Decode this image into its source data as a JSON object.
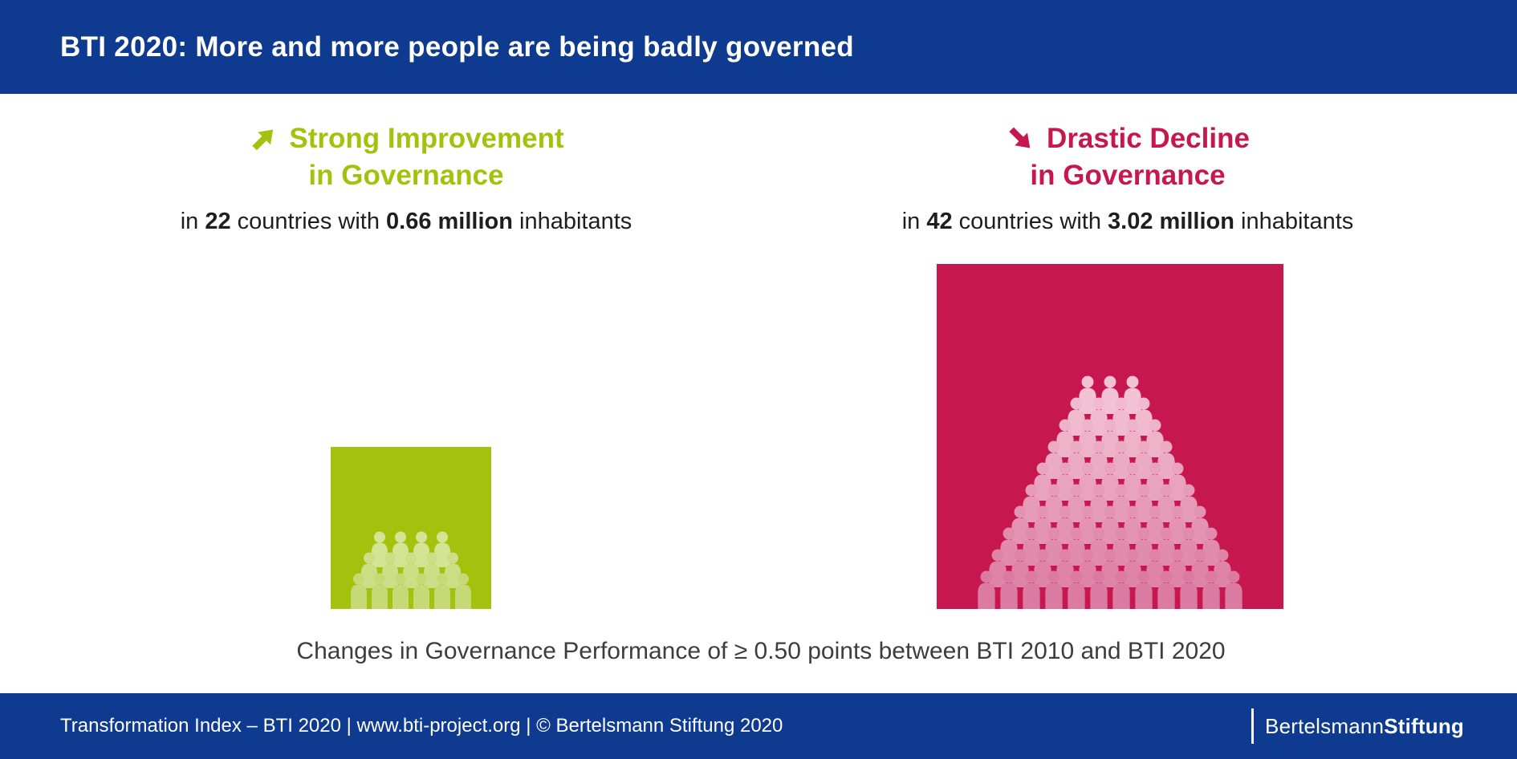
{
  "header": {
    "title": "BTI 2020: More and more people are being badly governed"
  },
  "improvement": {
    "title_line1": "Strong Improvement",
    "title_line2": "in Governance",
    "sub": {
      "prefix": "in ",
      "countries": "22",
      "mid": " countries with ",
      "inhabitants": "0.66 million",
      "suffix": " inhabitants"
    }
  },
  "decline": {
    "title_line1": "Drastic Decline",
    "title_line2": "in Governance",
    "sub": {
      "prefix": "in ",
      "countries": "42",
      "mid": " countries with ",
      "inhabitants": "3.02 million",
      "suffix": " inhabitants"
    }
  },
  "caption": "Changes in Governance Performance of ≥ 0.50 points between BTI 2010 and BTI 2020",
  "footer": {
    "source": "Transformation Index – BTI 2020 | www.bti-project.org | © Bertelsmann Stiftung 2020",
    "logo_part1": "Bertelsmann",
    "logo_part2": "Stiftung"
  },
  "colors": {
    "navy": "#0e3a8f",
    "green": "#a4c20d",
    "crimson": "#c6184e",
    "text_dark": "#1e1e1e",
    "caption_gray": "#3d3d3d"
  },
  "pictograms": {
    "improvement": {
      "rows": [
        4,
        5,
        6
      ],
      "square_color": "#a4c20d",
      "person_top": "#d5e395",
      "person_bottom": "#c6d977",
      "person_w": 30,
      "person_h": 45,
      "row_step": 26,
      "overlap": 4
    },
    "decline": {
      "rows": [
        3,
        4,
        5,
        6,
        7,
        8,
        9,
        10,
        11,
        12
      ],
      "square_color": "#c6184e",
      "person_top": "#f3c3d5",
      "person_bottom": "#dc7ba1",
      "person_w": 32,
      "person_h": 48,
      "row_step": 27,
      "overlap": 4
    }
  },
  "chart_data": {
    "type": "bar",
    "title": "BTI 2020: More and more people are being badly governed",
    "categories": [
      "Strong Improvement in Governance",
      "Drastic Decline in Governance"
    ],
    "series": [
      {
        "name": "Countries",
        "values": [
          22,
          42
        ]
      },
      {
        "name": "Inhabitants (million)",
        "values": [
          0.66,
          3.02
        ]
      }
    ],
    "annotations": [
      "Changes in Governance Performance of ≥ 0.50 points between BTI 2010 and BTI 2020"
    ],
    "legend": "none",
    "colors": [
      "#a4c20d",
      "#c6184e"
    ]
  }
}
